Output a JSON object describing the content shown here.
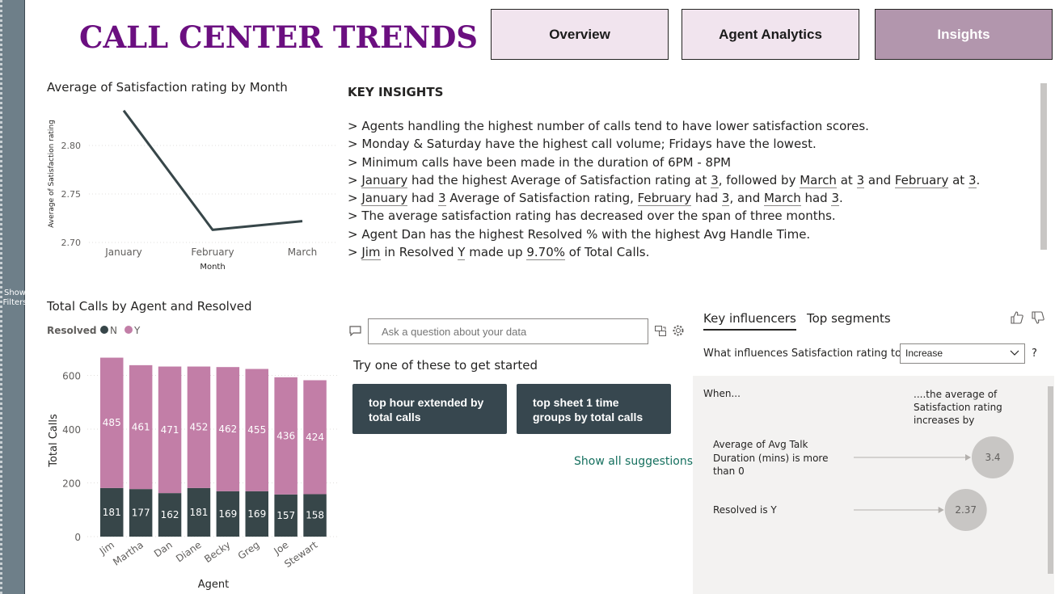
{
  "filters": {
    "label": "Show Filters"
  },
  "header": {
    "title": "CALL CENTER TRENDS",
    "nav": [
      {
        "label": "Overview",
        "active": false
      },
      {
        "label": "Agent Analytics",
        "active": false
      },
      {
        "label": "Insights",
        "active": true
      }
    ]
  },
  "line_chart_title": "Average of Satisfaction rating by Month",
  "bar_chart_title": "Total Calls by Agent and Resolved",
  "chart_data": [
    {
      "type": "line",
      "title": "Average of Satisfaction rating by Month",
      "xlabel": "Month",
      "ylabel": "Average of Satisfaction rating",
      "categories": [
        "January",
        "February",
        "March"
      ],
      "values": [
        2.836,
        2.713,
        2.722
      ],
      "ylim": [
        2.7,
        2.8
      ],
      "yticks": [
        "2.70",
        "2.75",
        "2.80"
      ],
      "grid": true,
      "color": "#374649"
    },
    {
      "type": "bar",
      "stacked": true,
      "title": "Total Calls by Agent and Resolved",
      "xlabel": "Agent",
      "ylabel": "Total Calls",
      "legend_title": "Resolved",
      "legend_position": "top-left",
      "categories": [
        "Jim",
        "Martha",
        "Dan",
        "Diane",
        "Becky",
        "Greg",
        "Joe",
        "Stewart"
      ],
      "series": [
        {
          "name": "N",
          "color": "#374649",
          "values": [
            181,
            177,
            162,
            181,
            169,
            169,
            157,
            158
          ]
        },
        {
          "name": "Y",
          "color": "#c27ea7",
          "values": [
            485,
            461,
            471,
            452,
            462,
            455,
            436,
            424
          ]
        }
      ],
      "ylim": [
        0,
        700
      ],
      "yticks": [
        "0",
        "200",
        "400",
        "600"
      ],
      "grid": true
    }
  ],
  "insights": {
    "heading": "KEY INSIGHTS",
    "lines": [
      [
        {
          "t": "> Agents handling the highest number of calls tend to have lower satisfaction scores."
        }
      ],
      [
        {
          "t": "> Monday & Saturday have the highest call volume; Fridays have the lowest."
        }
      ],
      [
        {
          "t": "> Minimum calls have been made in the duration of 6PM - 8PM"
        }
      ],
      [
        {
          "t": "> "
        },
        {
          "t": "January",
          "hl": true
        },
        {
          "t": " had the highest Average of Satisfaction rating at "
        },
        {
          "t": "3",
          "hl": true
        },
        {
          "t": ", followed by "
        },
        {
          "t": "March",
          "hl": true
        },
        {
          "t": " at "
        },
        {
          "t": "3",
          "hl": true
        },
        {
          "t": " and "
        },
        {
          "t": "February",
          "hl": true
        },
        {
          "t": " at "
        },
        {
          "t": "3",
          "hl": true
        },
        {
          "t": "."
        }
      ],
      [
        {
          "t": "> "
        },
        {
          "t": "January",
          "hl": true
        },
        {
          "t": " had "
        },
        {
          "t": "3",
          "hl": true
        },
        {
          "t": " Average of Satisfaction rating, "
        },
        {
          "t": "February",
          "hl": true
        },
        {
          "t": " had "
        },
        {
          "t": "3",
          "hl": true
        },
        {
          "t": ", and "
        },
        {
          "t": "March",
          "hl": true
        },
        {
          "t": " had "
        },
        {
          "t": "3",
          "hl": true
        },
        {
          "t": "."
        }
      ],
      [
        {
          "t": "> The average satisfaction rating has decreased over the span of three months."
        }
      ],
      [
        {
          "t": "> Agent Dan has the highest Resolved % with the highest Avg Handle Time."
        }
      ],
      [
        {
          "t": "> "
        },
        {
          "t": "Jim",
          "hl": true
        },
        {
          "t": " in Resolved "
        },
        {
          "t": "Y",
          "hl": true
        },
        {
          "t": " made up "
        },
        {
          "t": "9.70%",
          "hl": true
        },
        {
          "t": " of Total Calls."
        }
      ]
    ]
  },
  "qa": {
    "placeholder": "Ask a question about your data",
    "try_text": "Try one of these to get started",
    "suggestions": [
      "top hour extended by total calls",
      "top sheet 1 time groups by total calls"
    ],
    "show_all": "Show all suggestions",
    "icons": [
      "chat-icon",
      "convert-icon",
      "settings-icon"
    ]
  },
  "key_influencers": {
    "tabs": [
      {
        "label": "Key influencers",
        "active": true
      },
      {
        "label": "Top segments",
        "active": false
      }
    ],
    "question": "What influences Satisfaction rating to",
    "select_value": "Increase",
    "help": "?",
    "when_label": "When...",
    "avg_label": "....the average of Satisfaction rating increases by",
    "rows": [
      {
        "label": "Average of Avg Talk Duration (mins) is more than 0",
        "value": "3.4",
        "magnitude": 3.4
      },
      {
        "label": "Resolved is Y",
        "value": "2.37",
        "magnitude": 2.37
      }
    ],
    "bubble_color": "#c8c6c4"
  }
}
